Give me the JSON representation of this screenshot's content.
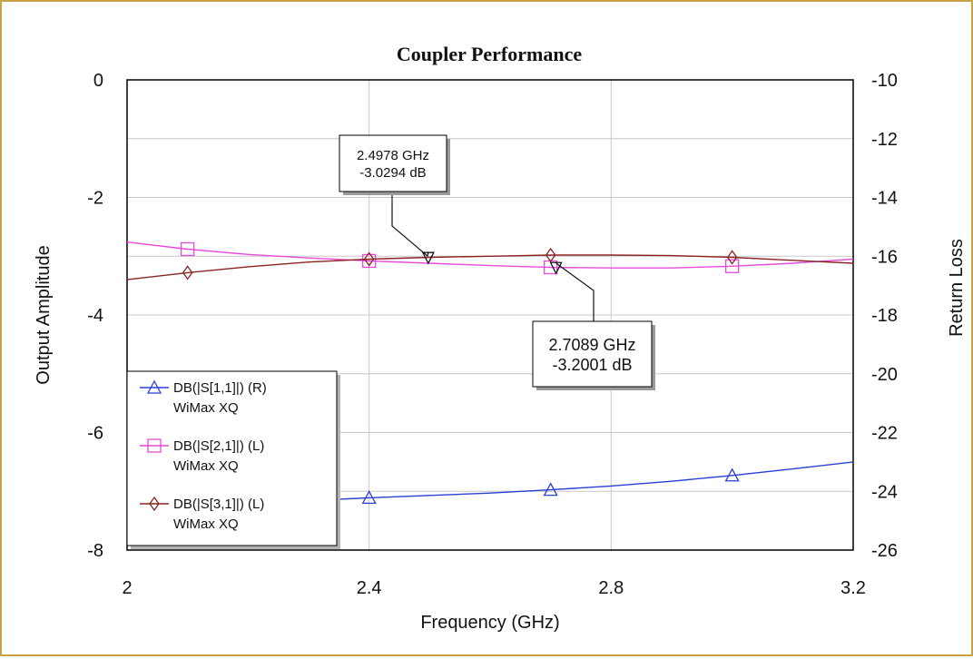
{
  "chart_data": {
    "type": "line",
    "title": "Coupler Performance",
    "xlabel": "Frequency (GHz)",
    "ylabel_left": "Output Amplitude",
    "ylabel_right": "Return Loss",
    "xlim": [
      2,
      3.2
    ],
    "ylim_left": [
      -8,
      0
    ],
    "ylim_right": [
      -26,
      -10
    ],
    "x_ticks": [
      "2",
      "2.4",
      "2.8",
      "3.2"
    ],
    "y_ticks_left": [
      "0",
      "-2",
      "-4",
      "-6",
      "-8"
    ],
    "y_ticks_right": [
      "-10",
      "-12",
      "-14",
      "-16",
      "-18",
      "-20",
      "-22",
      "-24",
      "-26"
    ],
    "grid": true,
    "legend_placement": "bottom-left",
    "series": [
      {
        "name": "DB(|S[1,1]|) (R)",
        "sub": "WiMax XQ",
        "axis": "right",
        "color": "#2a3fd6",
        "marker": "triangle",
        "x": [
          2.0,
          2.1,
          2.2,
          2.3,
          2.4,
          2.5,
          2.6,
          2.7,
          2.8,
          2.9,
          3.0,
          3.1,
          3.2
        ],
        "y": [
          -24.75,
          -24.6,
          -24.45,
          -24.32,
          -24.22,
          -24.14,
          -24.06,
          -23.95,
          -23.82,
          -23.66,
          -23.46,
          -23.24,
          -23.0
        ],
        "marker_x": [
          2.4,
          2.7,
          3.0
        ]
      },
      {
        "name": "DB(|S[2,1]|) (L)",
        "sub": "WiMax XQ",
        "axis": "left",
        "color": "#e64ad9",
        "marker": "square",
        "x": [
          2.0,
          2.1,
          2.2,
          2.3,
          2.4,
          2.5,
          2.6,
          2.7,
          2.8,
          2.9,
          3.0,
          3.1,
          3.2
        ],
        "y": [
          -2.76,
          -2.88,
          -2.97,
          -3.03,
          -3.08,
          -3.12,
          -3.16,
          -3.19,
          -3.2,
          -3.2,
          -3.17,
          -3.12,
          -3.05
        ],
        "marker_x": [
          2.1,
          2.4,
          2.7,
          3.0
        ]
      },
      {
        "name": "DB(|S[3,1]|) (L)",
        "sub": "WiMax XQ",
        "axis": "left",
        "color": "#8b2323",
        "marker": "diamond",
        "x": [
          2.0,
          2.1,
          2.2,
          2.3,
          2.4,
          2.5,
          2.6,
          2.7,
          2.8,
          2.9,
          3.0,
          3.1,
          3.2
        ],
        "y": [
          -3.4,
          -3.28,
          -3.18,
          -3.1,
          -3.05,
          -3.02,
          -3.0,
          -2.98,
          -2.98,
          -2.99,
          -3.02,
          -3.07,
          -3.12
        ],
        "marker_x": [
          2.1,
          2.4,
          2.7,
          3.0
        ]
      }
    ],
    "annotations": [
      {
        "line1": "2.4978 GHz",
        "line2": "-3.0294 dB",
        "x": 2.4978,
        "y": -3.0294,
        "marker": "down-triangle"
      },
      {
        "line1": "2.7089 GHz",
        "line2": "-3.2001 dB",
        "x": 2.7089,
        "y": -3.2001,
        "marker": "down-triangle"
      }
    ]
  }
}
